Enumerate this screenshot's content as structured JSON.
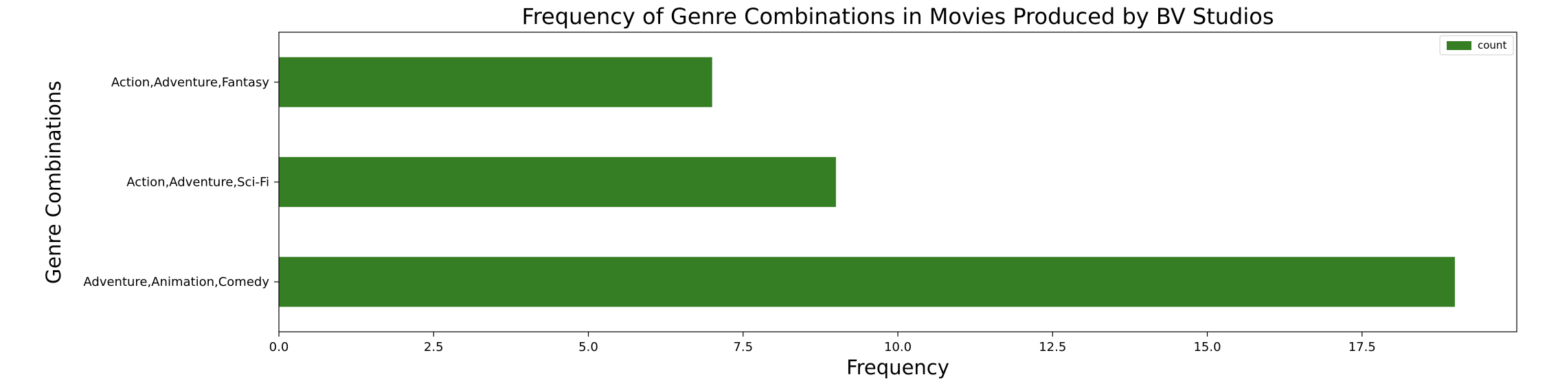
{
  "chart_data": {
    "type": "bar",
    "orientation": "horizontal",
    "title": "Frequency of Genre Combinations in Movies Produced by BV Studios",
    "xlabel": "Frequency",
    "ylabel": "Genre Combinations",
    "categories": [
      "Action,Adventure,Fantasy",
      "Action,Adventure,Sci-Fi",
      "Adventure,Animation,Comedy"
    ],
    "series": [
      {
        "name": "count",
        "values": [
          7,
          9,
          19
        ],
        "color": "#367e23"
      }
    ],
    "xlim": [
      0,
      20
    ],
    "xticks": [
      0.0,
      2.5,
      5.0,
      7.5,
      10.0,
      12.5,
      15.0,
      17.5
    ],
    "xtick_labels": [
      "0.0",
      "2.5",
      "5.0",
      "7.5",
      "10.0",
      "12.5",
      "15.0",
      "17.5"
    ],
    "grid": false,
    "legend_position": "top-right"
  }
}
